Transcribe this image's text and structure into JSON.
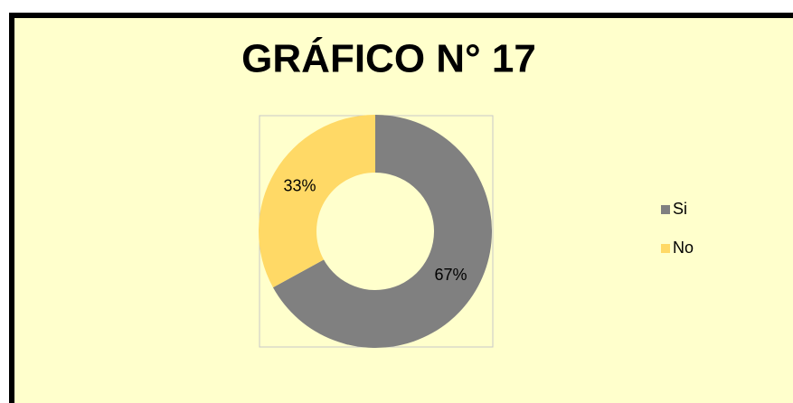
{
  "chart_data": {
    "type": "doughnut",
    "title": "GRÁFICO N° 17",
    "categories": [
      "Si",
      "No"
    ],
    "values": [
      67,
      33
    ],
    "value_labels": [
      "67%",
      "33%"
    ],
    "colors": [
      "#808080",
      "#FFD966"
    ],
    "legend": "right"
  }
}
